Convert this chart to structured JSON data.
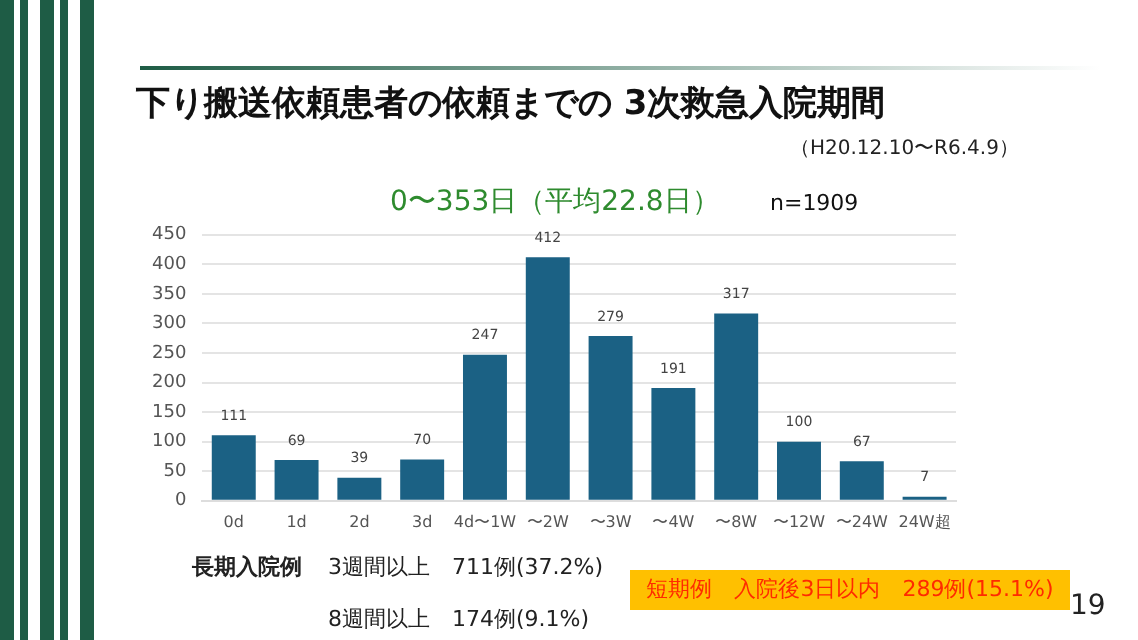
{
  "chart_data": {
    "type": "bar",
    "title": "下り搬送依頼患者の依頼までの 3次救急入院期間",
    "subtitle": "（H20.12.10〜R6.4.9）",
    "categories": [
      "0d",
      "1d",
      "2d",
      "3d",
      "4d〜1W",
      "〜2W",
      "〜3W",
      "〜4W",
      "〜8W",
      "〜12W",
      "〜24W",
      "24W超"
    ],
    "values": [
      111,
      69,
      39,
      70,
      247,
      412,
      279,
      191,
      317,
      100,
      67,
      7
    ],
    "color": "#1b6184",
    "ylim": [
      0,
      450
    ],
    "yticks": [
      0,
      50,
      100,
      150,
      200,
      250,
      300,
      350,
      400,
      450
    ],
    "grid": "y",
    "data_labels": true,
    "annotations": [
      "0〜353日（平均22.8日）",
      "n=1909",
      "長期入院例",
      "3週間以上　711例(37.2%)",
      "8週間以上　174例(9.1%)",
      "短期例　入院後3日以内　289例(15.1%)",
      "19"
    ]
  }
}
